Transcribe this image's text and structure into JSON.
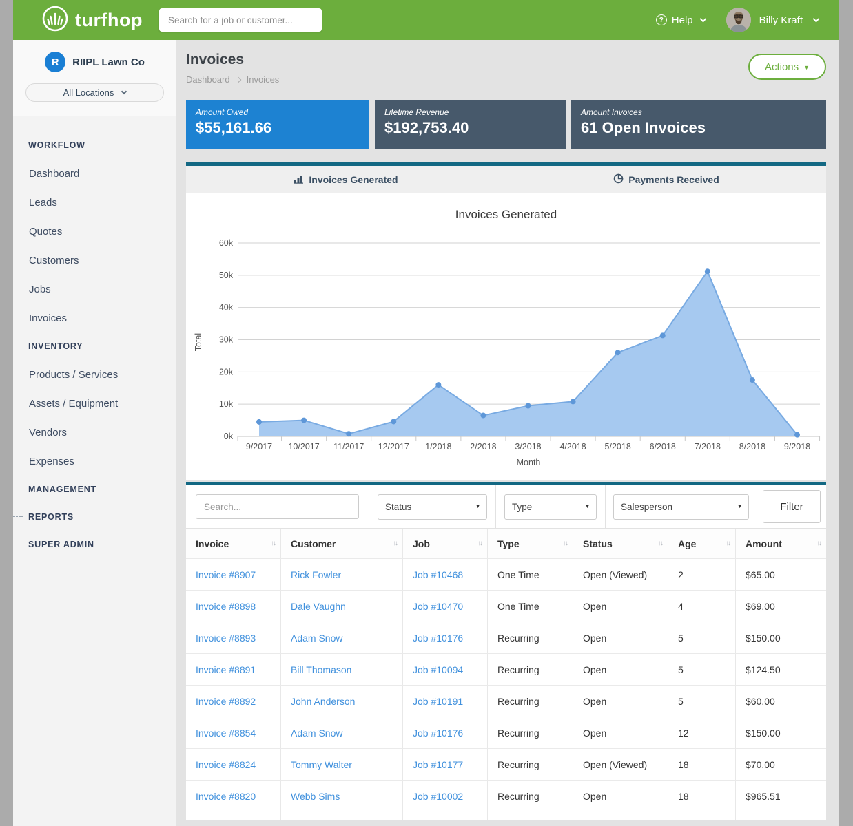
{
  "topbar": {
    "logo_text": "turfhop",
    "search_placeholder": "Search for a job or customer...",
    "help_label": "Help",
    "user_name": "Billy Kraft"
  },
  "sidebar": {
    "company_initial": "R",
    "company_name": "RIIPL Lawn Co",
    "locations_label": "All Locations",
    "sections": [
      {
        "label": "WORKFLOW",
        "items": [
          "Dashboard",
          "Leads",
          "Quotes",
          "Customers",
          "Jobs",
          "Invoices"
        ]
      },
      {
        "label": "INVENTORY",
        "items": [
          "Products / Services",
          "Assets / Equipment",
          "Vendors",
          "Expenses"
        ]
      },
      {
        "label": "MANAGEMENT",
        "items": []
      },
      {
        "label": "REPORTS",
        "items": []
      },
      {
        "label": "SUPER ADMIN",
        "items": []
      }
    ]
  },
  "page": {
    "title": "Invoices",
    "breadcrumb": [
      "Dashboard",
      "Invoices"
    ],
    "actions_label": "Actions"
  },
  "stats": [
    {
      "label": "Amount Owed",
      "value": "$55,161.66",
      "color": "#1d82d2"
    },
    {
      "label": "Lifetime Revenue",
      "value": "$192,753.40",
      "color": "#47596b"
    },
    {
      "label": "Amount Invoices",
      "value": "61 Open Invoices",
      "color": "#47596b"
    }
  ],
  "tabs": [
    {
      "label": "Invoices Generated",
      "icon": "bar-chart-icon",
      "active": true
    },
    {
      "label": "Payments Received",
      "icon": "pie-chart-icon",
      "active": false
    }
  ],
  "chart_data": {
    "type": "area",
    "title": "Invoices Generated",
    "xlabel": "Month",
    "ylabel": "Total",
    "categories": [
      "9/2017",
      "10/2017",
      "11/2017",
      "12/2017",
      "1/2018",
      "2/2018",
      "3/2018",
      "4/2018",
      "5/2018",
      "6/2018",
      "7/2018",
      "8/2018",
      "9/2018"
    ],
    "values": [
      4500,
      5000,
      800,
      4600,
      16000,
      6500,
      9500,
      10800,
      26000,
      31300,
      51200,
      17500,
      500
    ],
    "ylim": [
      0,
      60000
    ],
    "ytick_step": 10000,
    "ytick_labels": [
      "0k",
      "10k",
      "20k",
      "30k",
      "40k",
      "50k",
      "60k"
    ],
    "grid": true,
    "legend": "none",
    "line_color": "#78aae2",
    "fill_color": "#a6c9f0",
    "point_color": "#5e97d8"
  },
  "filters": {
    "search_placeholder": "Search...",
    "dropdowns": [
      "Status",
      "Type",
      "Salesperson"
    ],
    "button_label": "Filter"
  },
  "table": {
    "columns": [
      "Invoice",
      "Customer",
      "Job",
      "Type",
      "Status",
      "Age",
      "Amount"
    ],
    "rows": [
      [
        "Invoice #8907",
        "Rick Fowler",
        "Job #10468",
        "One Time",
        "Open (Viewed)",
        "2",
        "$65.00"
      ],
      [
        "Invoice #8898",
        "Dale Vaughn",
        "Job #10470",
        "One Time",
        "Open",
        "4",
        "$69.00"
      ],
      [
        "Invoice #8893",
        "Adam Snow",
        "Job #10176",
        "Recurring",
        "Open",
        "5",
        "$150.00"
      ],
      [
        "Invoice #8891",
        "Bill Thomason",
        "Job #10094",
        "Recurring",
        "Open",
        "5",
        "$124.50"
      ],
      [
        "Invoice #8892",
        "John Anderson",
        "Job #10191",
        "Recurring",
        "Open",
        "5",
        "$60.00"
      ],
      [
        "Invoice #8854",
        "Adam Snow",
        "Job #10176",
        "Recurring",
        "Open",
        "12",
        "$150.00"
      ],
      [
        "Invoice #8824",
        "Tommy Walter",
        "Job #10177",
        "Recurring",
        "Open (Viewed)",
        "18",
        "$70.00"
      ],
      [
        "Invoice #8820",
        "Webb Sims",
        "Job #10002",
        "Recurring",
        "Open",
        "18",
        "$965.51"
      ]
    ]
  }
}
